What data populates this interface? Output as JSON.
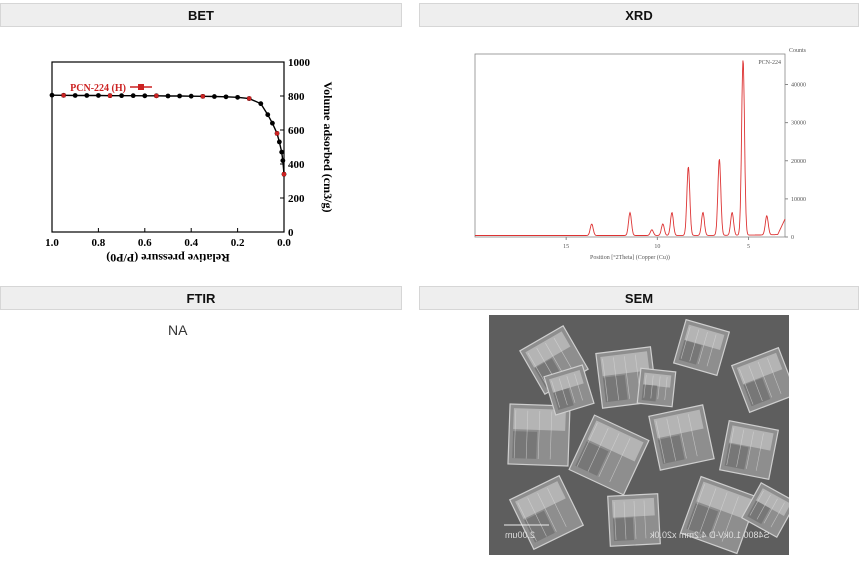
{
  "headers": {
    "bet": "BET",
    "xrd": "XRD",
    "ftir": "FTIR",
    "sem": "SEM"
  },
  "ftir": {
    "text": "NA"
  },
  "sem": {
    "scale_label": "2.00um",
    "meta": "S4800 1.0kV-D 4.2mm x20.0k"
  },
  "chart_data": [
    {
      "id": "bet",
      "type": "line",
      "xlabel": "Relative pressure (P/P0)",
      "ylabel": "Volume adsorbed (cm3/g)",
      "xlim": [
        0,
        1.0
      ],
      "ylim": [
        0,
        1000
      ],
      "x_ticks": [
        "0.0",
        "0.2",
        "0.4",
        "0.6",
        "0.8",
        "1.0"
      ],
      "y_ticks": [
        "0",
        "200",
        "400",
        "600",
        "800",
        "1000"
      ],
      "legend": "PCN-224 (H)",
      "mirrored": true,
      "colors": {
        "line": "#000000",
        "marker": "#cc2222"
      },
      "series": [
        {
          "name": "PCN-224 (H)",
          "x": [
            0.0,
            0.005,
            0.01,
            0.02,
            0.03,
            0.05,
            0.07,
            0.1,
            0.15,
            0.2,
            0.25,
            0.3,
            0.35,
            0.4,
            0.45,
            0.5,
            0.55,
            0.6,
            0.65,
            0.7,
            0.75,
            0.8,
            0.85,
            0.9,
            0.95,
            1.0
          ],
          "y": [
            340,
            420,
            470,
            530,
            580,
            640,
            690,
            755,
            785,
            792,
            795,
            797,
            798,
            799,
            800,
            800,
            801,
            801,
            802,
            802,
            802,
            803,
            803,
            803,
            804,
            805
          ]
        }
      ]
    },
    {
      "id": "xrd",
      "type": "line",
      "title": "PCN-224",
      "xlabel": "Position [°2Theta] (Copper (Cu))",
      "ylabel": "Counts",
      "x_ticks": [
        "5",
        "10",
        "15"
      ],
      "y_ticks": [
        "0",
        "10000",
        "20000",
        "30000",
        "40000"
      ],
      "xlim": [
        3,
        20
      ],
      "ylim": [
        0,
        48000
      ],
      "mirrored": true,
      "colors": {
        "line": "#dd3333"
      },
      "peaks": [
        {
          "x": 5.3,
          "y": 46000
        },
        {
          "x": 4.0,
          "y": 5000
        },
        {
          "x": 5.9,
          "y": 6000
        },
        {
          "x": 6.6,
          "y": 20000
        },
        {
          "x": 7.5,
          "y": 6000
        },
        {
          "x": 8.3,
          "y": 18000
        },
        {
          "x": 9.2,
          "y": 6000
        },
        {
          "x": 9.7,
          "y": 3000
        },
        {
          "x": 10.3,
          "y": 1500
        },
        {
          "x": 11.5,
          "y": 6000
        },
        {
          "x": 13.6,
          "y": 3000
        }
      ]
    }
  ]
}
